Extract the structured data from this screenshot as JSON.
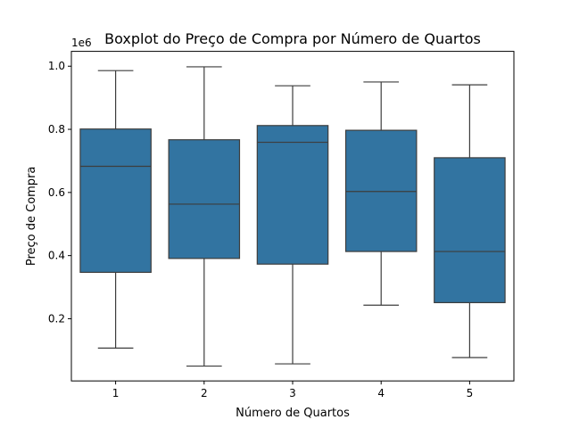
{
  "chart_data": {
    "type": "boxplot",
    "title": "Boxplot do Preço de Compra por Número de Quartos",
    "xlabel": "Número de Quartos",
    "ylabel": "Preço de Compra",
    "y_offset_label": "1e6",
    "categories": [
      "1",
      "2",
      "3",
      "4",
      "5"
    ],
    "y_ticks": [
      0.2,
      0.4,
      0.6,
      0.8,
      1.0
    ],
    "y_tick_labels": [
      "0.2",
      "0.4",
      "0.6",
      "0.8",
      "1.0"
    ],
    "ylim": [
      0.003,
      1.047
    ],
    "grid": false,
    "boxes": [
      {
        "category": "1",
        "whisker_low": 0.107,
        "q1": 0.347,
        "median": 0.683,
        "q3": 0.801,
        "whisker_high": 0.986
      },
      {
        "category": "2",
        "whisker_low": 0.05,
        "q1": 0.391,
        "median": 0.563,
        "q3": 0.767,
        "whisker_high": 0.998
      },
      {
        "category": "3",
        "whisker_low": 0.057,
        "q1": 0.373,
        "median": 0.759,
        "q3": 0.812,
        "whisker_high": 0.938
      },
      {
        "category": "4",
        "whisker_low": 0.243,
        "q1": 0.413,
        "median": 0.603,
        "q3": 0.797,
        "whisker_high": 0.95
      },
      {
        "category": "5",
        "whisker_low": 0.077,
        "q1": 0.251,
        "median": 0.413,
        "q3": 0.71,
        "whisker_high": 0.941
      }
    ],
    "colors": {
      "box_fill": "#3274a1",
      "line": "#3d3d3d",
      "axis": "#000000"
    }
  }
}
